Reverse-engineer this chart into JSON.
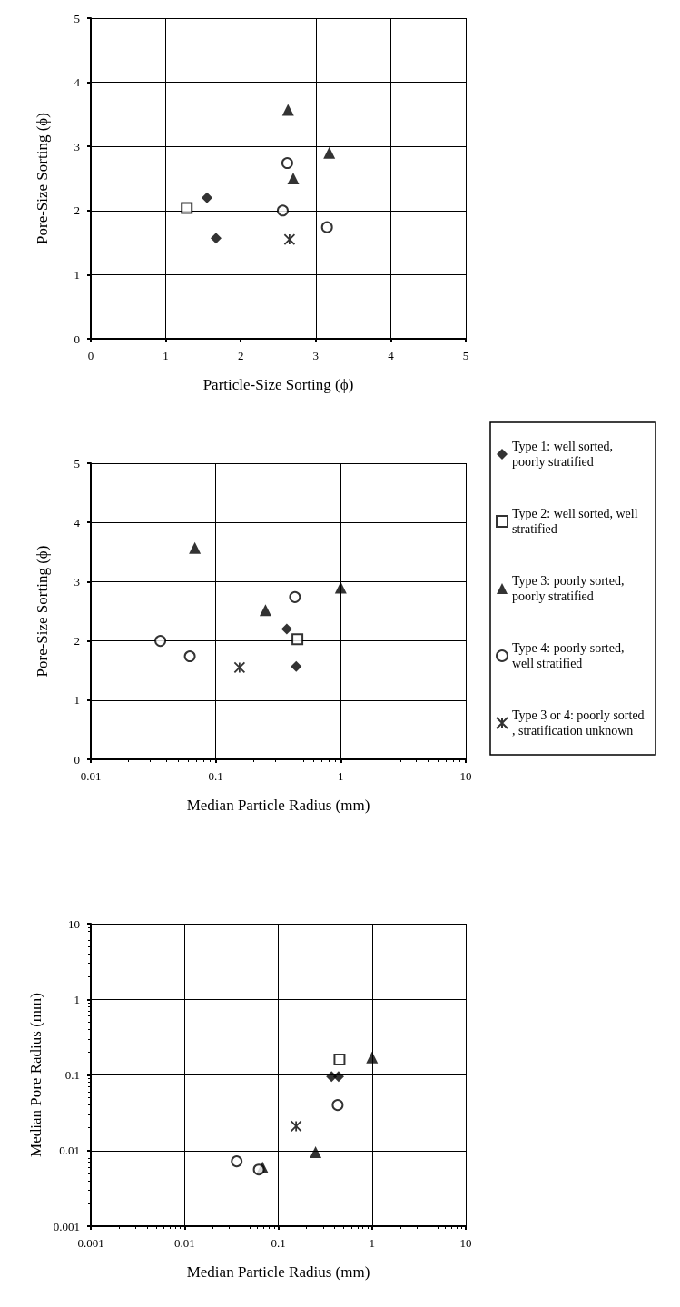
{
  "chart_data": [
    {
      "type": "scatter",
      "xlabel": "Particle-Size Sorting (ϕ)",
      "ylabel": "Pore-Size Sorting (ϕ)",
      "xlim": [
        0,
        5
      ],
      "xticks": [
        0,
        1,
        2,
        3,
        4,
        5
      ],
      "ylim": [
        0,
        5
      ],
      "yticks": [
        0,
        1,
        2,
        3,
        4,
        5
      ],
      "grid": true,
      "series": [
        {
          "color": "#000000",
          "marker": "diamond",
          "x": [
            1.55,
            1.67
          ],
          "values": [
            2.2,
            1.57
          ]
        },
        {
          "color": "#000000",
          "marker": "square",
          "x": [
            1.28
          ],
          "values": [
            2.04
          ]
        },
        {
          "color": "#000000",
          "marker": "triangle",
          "x": [
            2.63,
            2.7,
            3.18
          ],
          "values": [
            3.57,
            2.5,
            2.9
          ]
        },
        {
          "color": "#000000",
          "marker": "circle",
          "x": [
            2.62,
            2.56,
            3.15
          ],
          "values": [
            2.74,
            2.0,
            1.74
          ]
        },
        {
          "color": "#000000",
          "marker": "cross",
          "x": [
            2.65
          ],
          "values": [
            1.55
          ]
        }
      ]
    },
    {
      "type": "scatter",
      "xlabel": "Median Particle Radius (mm)",
      "ylabel": "Pore-Size Sorting (ϕ)",
      "log": "x",
      "xlim": [
        0.01,
        10
      ],
      "xticks": [
        0.01,
        0.1,
        1,
        10
      ],
      "ylim": [
        0,
        5
      ],
      "yticks": [
        0,
        1,
        2,
        3,
        4,
        5
      ],
      "grid": true,
      "legend": "right",
      "series": [
        {
          "name": "Type 1: well sorted, poorly stratified",
          "color": "#000000",
          "marker": "diamond",
          "x": [
            0.37,
            0.44
          ],
          "values": [
            2.2,
            1.57
          ]
        },
        {
          "name": "Type 2: well sorted, well stratified",
          "color": "#000000",
          "marker": "square",
          "x": [
            0.45
          ],
          "values": [
            2.03
          ]
        },
        {
          "name": "Type 3: poorly sorted, poorly stratified",
          "color": "#000000",
          "marker": "triangle",
          "x": [
            0.068,
            0.25,
            1.0
          ],
          "values": [
            3.57,
            2.52,
            2.9
          ]
        },
        {
          "name": "Type 4: poorly sorted, well stratified",
          "color": "#000000",
          "marker": "circle",
          "x": [
            0.43,
            0.036,
            0.062
          ],
          "values": [
            2.74,
            2.0,
            1.74
          ]
        },
        {
          "name": "Type 3 or 4: poorly sorted, stratification unknown",
          "color": "#000000",
          "marker": "cross",
          "x": [
            0.155
          ],
          "values": [
            1.55
          ]
        }
      ]
    },
    {
      "type": "scatter",
      "xlabel": "Median Particle Radius (mm)",
      "ylabel": "Median Pore Radius (mm)",
      "log": "xy",
      "xlim": [
        0.001,
        10
      ],
      "xticks": [
        0.001,
        0.01,
        0.1,
        1,
        10
      ],
      "ylim": [
        0.001,
        10
      ],
      "yticks": [
        0.001,
        0.01,
        0.1,
        1,
        10
      ],
      "grid": true,
      "series": [
        {
          "color": "#000000",
          "marker": "diamond",
          "x": [
            0.37,
            0.44
          ],
          "values": [
            0.095,
            0.095
          ]
        },
        {
          "color": "#000000",
          "marker": "square",
          "x": [
            0.45
          ],
          "values": [
            0.16
          ]
        },
        {
          "color": "#000000",
          "marker": "triangle",
          "x": [
            0.068,
            0.25,
            1.0
          ],
          "values": [
            0.006,
            0.0095,
            0.17
          ]
        },
        {
          "color": "#000000",
          "marker": "circle",
          "x": [
            0.43,
            0.036,
            0.062
          ],
          "values": [
            0.04,
            0.0072,
            0.0056
          ]
        },
        {
          "color": "#000000",
          "marker": "cross",
          "x": [
            0.155
          ],
          "values": [
            0.021
          ]
        }
      ]
    }
  ]
}
